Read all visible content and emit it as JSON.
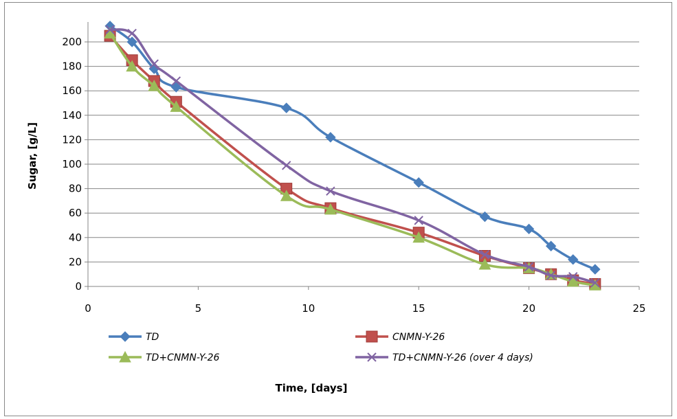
{
  "chart_data": {
    "type": "line",
    "title": "",
    "xlabel": "Time, [days]",
    "ylabel": "Sugar, [g/L]",
    "xlim": [
      0,
      25
    ],
    "ylim": [
      0,
      210
    ],
    "xticks": [
      0,
      5,
      10,
      15,
      20,
      25
    ],
    "yticks": [
      0,
      20,
      40,
      60,
      80,
      100,
      120,
      140,
      160,
      180,
      200
    ],
    "grid": "horizontal",
    "legend_position": "bottom",
    "series": [
      {
        "name": "TD",
        "color": "#4a7ebb",
        "marker": "diamond",
        "x": [
          1,
          2,
          3,
          4,
          9,
          11,
          15,
          18,
          20,
          21,
          22,
          23
        ],
        "y": [
          213,
          200,
          178,
          163,
          146,
          122,
          85,
          57,
          47,
          33,
          22,
          14
        ]
      },
      {
        "name": "CNMN-Y-26",
        "color": "#c0504d",
        "marker": "square",
        "x": [
          1,
          2,
          3,
          4,
          9,
          11,
          15,
          18,
          20,
          21,
          22,
          23
        ],
        "y": [
          205,
          185,
          168,
          151,
          80,
          64,
          44,
          25,
          15,
          10,
          5,
          2
        ]
      },
      {
        "name": "TD+CNMN-Y-26",
        "color": "#9bbb59",
        "marker": "triangle",
        "x": [
          1,
          2,
          3,
          4,
          9,
          11,
          15,
          18,
          20,
          21,
          22,
          23
        ],
        "y": [
          207,
          180,
          164,
          147,
          74,
          63,
          40,
          18,
          15,
          10,
          4,
          1
        ]
      },
      {
        "name": "TD+CNMN-Y-26 (over 4 days)",
        "color": "#8064a2",
        "marker": "x",
        "x": [
          1,
          2,
          3,
          4,
          9,
          11,
          15,
          18,
          20,
          21,
          22,
          23
        ],
        "y": [
          210,
          207,
          182,
          168,
          99,
          78,
          54,
          26,
          16,
          9,
          8,
          3
        ]
      }
    ]
  }
}
